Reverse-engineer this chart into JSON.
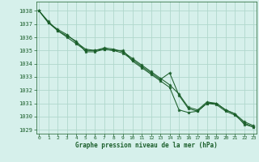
{
  "title": "Graphe pression niveau de la mer (hPa)",
  "bg_color": "#d6f0eb",
  "grid_color": "#b0d8cc",
  "line_color": "#1a5e2a",
  "marker_color": "#1a5e2a",
  "xlim": [
    -0.3,
    23.3
  ],
  "ylim": [
    1028.7,
    1038.7
  ],
  "yticks": [
    1029,
    1030,
    1031,
    1032,
    1033,
    1034,
    1035,
    1036,
    1037,
    1038
  ],
  "xticks": [
    0,
    1,
    2,
    3,
    4,
    5,
    6,
    7,
    8,
    9,
    10,
    11,
    12,
    13,
    14,
    15,
    16,
    17,
    18,
    19,
    20,
    21,
    22,
    23
  ],
  "series": [
    [
      1038.0,
      1037.1,
      1036.5,
      1036.1,
      1035.7,
      1034.9,
      1034.9,
      1035.1,
      1035.0,
      1035.0,
      1034.2,
      1033.7,
      1033.2,
      1032.7,
      1032.2,
      1030.5,
      1030.3,
      1030.4,
      1031.0,
      1031.0,
      1030.5,
      1030.2,
      1029.4,
      1029.2
    ],
    [
      1038.0,
      1037.2,
      1036.5,
      1036.0,
      1035.5,
      1035.0,
      1035.0,
      1035.1,
      1035.0,
      1034.8,
      1034.3,
      1033.8,
      1033.3,
      1032.8,
      1033.3,
      1031.6,
      1030.6,
      1030.4,
      1031.0,
      1030.9,
      1030.4,
      1030.1,
      1029.5,
      1029.2
    ],
    [
      1038.0,
      1037.1,
      1036.6,
      1036.2,
      1035.6,
      1035.1,
      1035.0,
      1035.2,
      1035.1,
      1034.9,
      1034.4,
      1033.9,
      1033.4,
      1032.9,
      1032.4,
      1031.7,
      1030.7,
      1030.5,
      1031.1,
      1031.0,
      1030.5,
      1030.2,
      1029.6,
      1029.3
    ]
  ]
}
